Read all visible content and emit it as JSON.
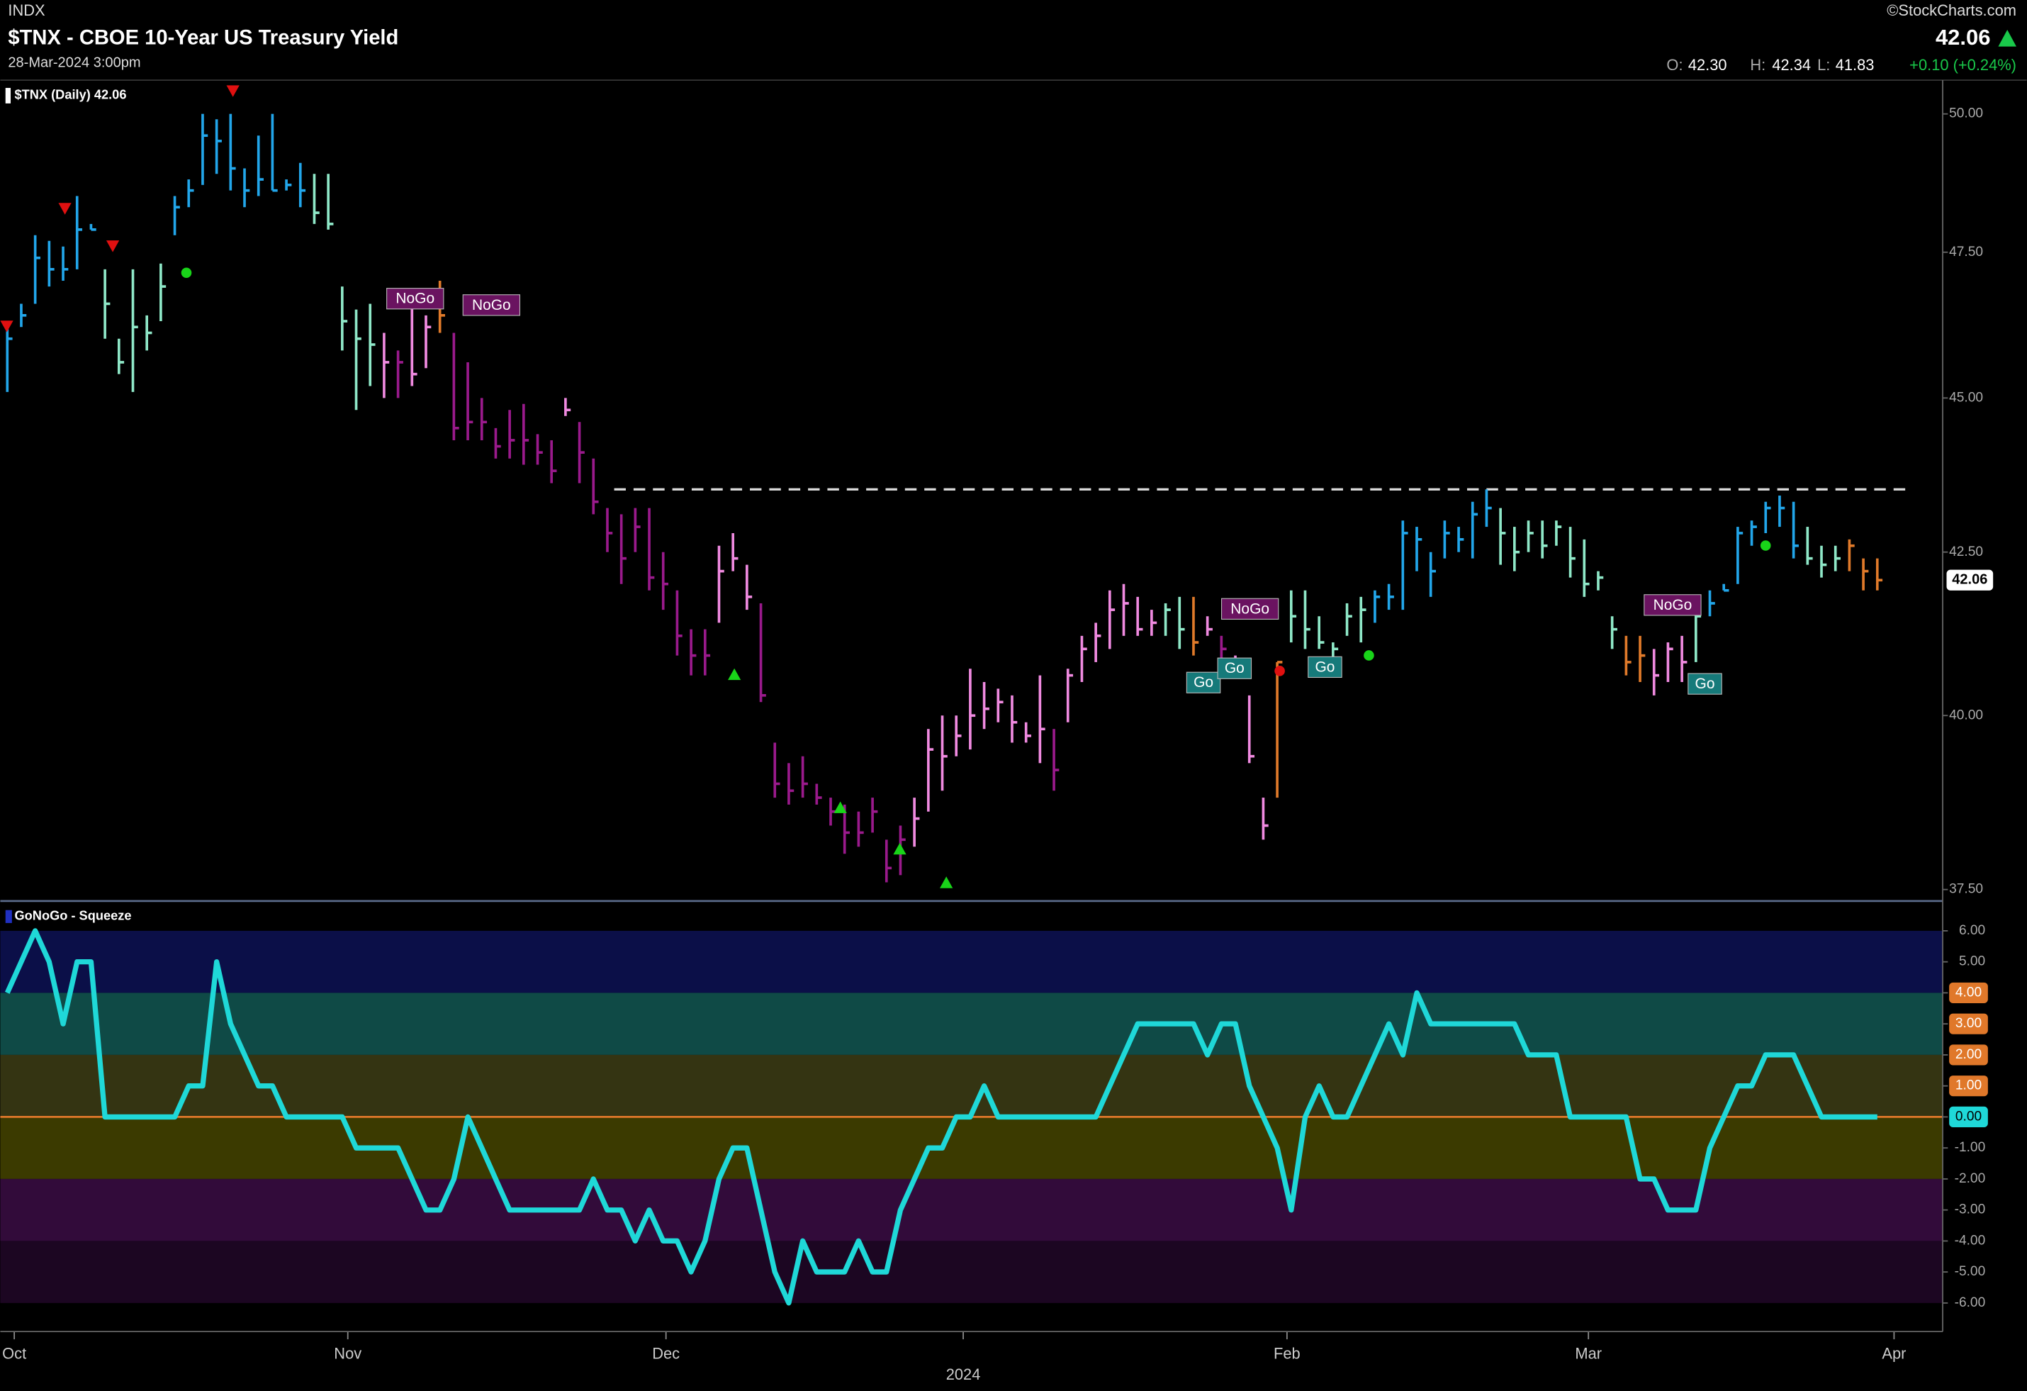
{
  "header": {
    "exchange": "INDX",
    "copyright": "©StockCharts.com",
    "title": "$TNX - CBOE 10-Year US Treasury Yield",
    "date": "28-Mar-2024 3:00pm",
    "last": "42.06",
    "o_label": "O:",
    "open": "42.30",
    "h_label": "H:",
    "high": "42.34",
    "l_label": "L:",
    "low": "41.83",
    "change": "+0.10 (+0.24%)"
  },
  "chart_data": [
    {
      "type": "ohlc",
      "legend": "$TNX (Daily) 42.06",
      "log_scale": true,
      "ylim": [
        37.34,
        50.63
      ],
      "yticks": [
        {
          "value": 37.5,
          "label": "37.50"
        },
        {
          "value": 40,
          "label": "40.00"
        },
        {
          "value": 42.5,
          "label": "42.50"
        },
        {
          "value": 45,
          "label": "45.00"
        },
        {
          "value": 47.5,
          "label": "47.50"
        },
        {
          "value": 50,
          "label": "50.00"
        }
      ],
      "last_value": 42.06,
      "last_label": "42.06",
      "resistance_level": 43.5,
      "xlim": [
        -0.5,
        138.5
      ],
      "annotations": [
        "NoGo",
        "NoGo",
        "NoGo",
        "Go",
        "Go",
        "Go",
        "NoGo",
        "Go"
      ],
      "high": [
        46.2,
        46.6,
        47.8,
        47.7,
        47.6,
        48.5,
        48.0,
        47.2,
        46.0,
        47.2,
        46.4,
        47.3,
        48.5,
        48.8,
        50.0,
        49.9,
        50.0,
        49.0,
        49.6,
        50.0,
        48.8,
        49.1,
        48.9,
        48.9,
        46.9,
        46.5,
        46.6,
        46.1,
        45.8,
        46.6,
        46.4,
        47.0,
        46.1,
        45.6,
        45.0,
        44.5,
        44.8,
        44.9,
        44.4,
        44.3,
        45.0,
        44.6,
        44.0,
        43.2,
        43.1,
        43.2,
        43.2,
        42.5,
        41.9,
        41.3,
        41.3,
        42.6,
        42.8,
        42.3,
        41.7,
        39.6,
        39.3,
        39.4,
        39.0,
        38.8,
        38.7,
        38.6,
        38.8,
        38.2,
        38.4,
        38.8,
        39.8,
        40.0,
        40.0,
        40.7,
        40.5,
        40.4,
        40.3,
        39.9,
        40.6,
        39.8,
        40.7,
        41.2,
        41.4,
        41.9,
        42.0,
        41.8,
        41.6,
        41.7,
        41.8,
        41.8,
        41.5,
        41.2,
        40.9,
        40.3,
        38.8,
        40.8,
        41.9,
        41.9,
        41.5,
        41.1,
        41.7,
        41.8,
        41.9,
        42.0,
        43.0,
        42.9,
        42.5,
        43.0,
        42.9,
        43.3,
        43.5,
        43.2,
        42.9,
        43.0,
        43.0,
        43.0,
        42.9,
        42.7,
        42.2,
        41.5,
        41.2,
        41.2,
        41.0,
        41.1,
        41.2,
        41.6,
        41.9,
        42.0,
        42.9,
        43.0,
        43.3,
        43.4,
        43.3,
        42.9,
        42.6,
        42.6,
        42.7,
        42.4,
        42.4
      ],
      "low": [
        45.1,
        46.2,
        46.6,
        46.9,
        47.0,
        47.2,
        47.9,
        46.0,
        45.4,
        45.1,
        45.8,
        46.3,
        47.8,
        48.3,
        48.7,
        48.9,
        48.6,
        48.3,
        48.5,
        48.6,
        48.6,
        48.3,
        48.0,
        47.9,
        45.8,
        44.8,
        45.2,
        45.0,
        45.0,
        45.2,
        45.5,
        46.1,
        44.3,
        44.3,
        44.3,
        44.0,
        44.0,
        43.9,
        43.9,
        43.6,
        44.7,
        43.6,
        43.1,
        42.5,
        42.0,
        42.5,
        41.9,
        41.6,
        40.9,
        40.6,
        40.6,
        41.4,
        42.2,
        41.6,
        40.2,
        38.8,
        38.7,
        38.8,
        38.7,
        38.4,
        38.0,
        38.1,
        38.3,
        37.6,
        37.7,
        38.1,
        38.6,
        38.9,
        39.4,
        39.5,
        39.8,
        39.9,
        39.6,
        39.6,
        39.3,
        38.9,
        39.9,
        40.5,
        40.8,
        41.0,
        41.2,
        41.2,
        41.2,
        41.2,
        41.0,
        40.9,
        41.2,
        40.8,
        40.6,
        39.3,
        38.2,
        38.8,
        41.1,
        41.0,
        41.0,
        40.8,
        41.2,
        41.1,
        41.4,
        41.6,
        41.6,
        42.2,
        41.8,
        42.4,
        42.5,
        42.4,
        42.9,
        42.3,
        42.2,
        42.5,
        42.4,
        42.6,
        42.1,
        41.8,
        41.9,
        41.0,
        40.6,
        40.5,
        40.3,
        40.5,
        40.5,
        40.8,
        41.5,
        41.9,
        42.0,
        42.6,
        42.8,
        42.9,
        42.4,
        42.3,
        42.1,
        42.2,
        42.2,
        41.9,
        41.9
      ],
      "close": [
        46.0,
        46.4,
        47.4,
        47.2,
        47.2,
        47.9,
        47.9,
        46.6,
        45.6,
        46.2,
        46.1,
        46.9,
        48.3,
        48.6,
        49.6,
        49.5,
        49.0,
        48.6,
        48.8,
        48.6,
        48.7,
        48.6,
        48.2,
        48.0,
        46.3,
        46.0,
        45.9,
        45.6,
        45.6,
        45.4,
        46.2,
        46.4,
        44.5,
        44.6,
        44.6,
        44.2,
        44.3,
        44.3,
        44.1,
        43.8,
        44.8,
        44.1,
        43.3,
        42.8,
        42.4,
        42.9,
        42.1,
        42.0,
        41.2,
        40.9,
        40.9,
        42.2,
        42.4,
        41.8,
        40.3,
        39.0,
        38.9,
        39.0,
        38.8,
        38.6,
        38.3,
        38.3,
        38.6,
        37.8,
        38.2,
        38.5,
        39.5,
        39.4,
        39.7,
        40.0,
        40.1,
        40.2,
        39.9,
        39.7,
        39.8,
        39.2,
        40.6,
        41.0,
        41.2,
        41.6,
        41.7,
        41.3,
        41.4,
        41.6,
        41.3,
        41.1,
        41.3,
        41.0,
        40.7,
        39.4,
        38.4,
        40.8,
        41.5,
        41.3,
        41.1,
        41.0,
        41.5,
        41.6,
        41.8,
        41.8,
        42.8,
        42.7,
        42.2,
        42.8,
        42.7,
        43.1,
        43.2,
        42.8,
        42.5,
        42.8,
        42.6,
        42.9,
        42.4,
        42.0,
        42.1,
        41.3,
        40.8,
        40.9,
        40.6,
        41.0,
        40.8,
        41.5,
        41.7,
        41.9,
        42.8,
        42.9,
        43.2,
        43.2,
        42.6,
        42.4,
        42.3,
        42.4,
        42.6,
        42.2,
        42.06
      ],
      "colors": [
        "#22a6ea",
        "#22a6ea",
        "#22a6ea",
        "#22a6ea",
        "#22a6ea",
        "#22a6ea",
        "#22a6ea",
        "#8fe8c8",
        "#8fe8c8",
        "#8fe8c8",
        "#8fe8c8",
        "#8fe8c8",
        "#22a6ea",
        "#22a6ea",
        "#22a6ea",
        "#22a6ea",
        "#22a6ea",
        "#22a6ea",
        "#22a6ea",
        "#22a6ea",
        "#22a6ea",
        "#22a6ea",
        "#8fe8c8",
        "#8fe8c8",
        "#8fe8c8",
        "#8fe8c8",
        "#8fe8c8",
        "#f08ae0",
        "#9a1a8c",
        "#f08ae0",
        "#f08ae0",
        "#e07a2a",
        "#9a1a8c",
        "#9a1a8c",
        "#9a1a8c",
        "#9a1a8c",
        "#9a1a8c",
        "#9a1a8c",
        "#9a1a8c",
        "#9a1a8c",
        "#f08ae0",
        "#9a1a8c",
        "#9a1a8c",
        "#9a1a8c",
        "#9a1a8c",
        "#9a1a8c",
        "#9a1a8c",
        "#9a1a8c",
        "#9a1a8c",
        "#9a1a8c",
        "#9a1a8c",
        "#f08ae0",
        "#f08ae0",
        "#f08ae0",
        "#9a1a8c",
        "#9a1a8c",
        "#9a1a8c",
        "#9a1a8c",
        "#9a1a8c",
        "#9a1a8c",
        "#9a1a8c",
        "#9a1a8c",
        "#9a1a8c",
        "#9a1a8c",
        "#9a1a8c",
        "#f08ae0",
        "#f08ae0",
        "#f08ae0",
        "#f08ae0",
        "#f08ae0",
        "#f08ae0",
        "#f08ae0",
        "#f08ae0",
        "#f08ae0",
        "#f08ae0",
        "#9a1a8c",
        "#f08ae0",
        "#f08ae0",
        "#f08ae0",
        "#f08ae0",
        "#f08ae0",
        "#f08ae0",
        "#f08ae0",
        "#8fe8c8",
        "#8fe8c8",
        "#e07a2a",
        "#f08ae0",
        "#9a1a8c",
        "#f08ae0",
        "#f08ae0",
        "#f08ae0",
        "#e07a2a",
        "#8fe8c8",
        "#8fe8c8",
        "#8fe8c8",
        "#8fe8c8",
        "#8fe8c8",
        "#8fe8c8",
        "#22a6ea",
        "#22a6ea",
        "#22a6ea",
        "#22a6ea",
        "#22a6ea",
        "#22a6ea",
        "#22a6ea",
        "#22a6ea",
        "#22a6ea",
        "#8fe8c8",
        "#8fe8c8",
        "#8fe8c8",
        "#8fe8c8",
        "#8fe8c8",
        "#8fe8c8",
        "#8fe8c8",
        "#8fe8c8",
        "#8fe8c8",
        "#e07a2a",
        "#e07a2a",
        "#f08ae0",
        "#f08ae0",
        "#f08ae0",
        "#8fe8c8",
        "#22a6ea",
        "#22a6ea",
        "#22a6ea",
        "#22a6ea",
        "#22a6ea",
        "#22a6ea",
        "#22a6ea",
        "#8fe8c8",
        "#8fe8c8",
        "#8fe8c8",
        "#e07a2a",
        "#e07a2a",
        "#e07a2a"
      ],
      "xticks": [
        {
          "value": 0.5,
          "label": "Oct"
        },
        {
          "value": 24.4,
          "label": "Nov"
        },
        {
          "value": 47.2,
          "label": "Dec"
        },
        {
          "value": 68.5,
          "label": "2024"
        },
        {
          "value": 91.7,
          "label": "Feb"
        },
        {
          "value": 113.3,
          "label": "Mar"
        },
        {
          "value": 135.2,
          "label": "Apr"
        }
      ]
    },
    {
      "type": "line",
      "legend": "GoNoGo - Squeeze",
      "color": "#1fd8d8",
      "zero_color": "#e0782a",
      "ylim": [
        -6.92,
        6.96
      ],
      "xlim": [
        -0.5,
        138.5
      ],
      "yticks": [
        {
          "value": 6,
          "label": "6.00"
        },
        {
          "value": 5,
          "label": "5.00"
        },
        {
          "value": 4,
          "label": "4.00"
        },
        {
          "value": 3,
          "label": "3.00"
        },
        {
          "value": 2,
          "label": "2.00"
        },
        {
          "value": 1,
          "label": "1.00"
        },
        {
          "value": 0,
          "label": "0.00"
        },
        {
          "value": -1,
          "label": "-1.00"
        },
        {
          "value": -2,
          "label": "-2.00"
        },
        {
          "value": -3,
          "label": "-3.00"
        },
        {
          "value": -4,
          "label": "-4.00"
        },
        {
          "value": -5,
          "label": "-5.00"
        },
        {
          "value": -6,
          "label": "-6.00"
        }
      ],
      "squeeze_ticks": [
        {
          "value": 4,
          "label": "4.00"
        },
        {
          "value": 3,
          "label": "3.00"
        },
        {
          "value": 2,
          "label": "2.00"
        },
        {
          "value": 1,
          "label": "1.00"
        }
      ],
      "current": {
        "value": 0,
        "label": "0.00"
      },
      "zones": [
        {
          "from": 4,
          "to": 6,
          "color": "#0b0f48"
        },
        {
          "from": 2,
          "to": 4,
          "color": "#0f4a46"
        },
        {
          "from": 0,
          "to": 2,
          "color": "#343412"
        },
        {
          "from": -2,
          "to": 0,
          "color": "#3b3a00"
        },
        {
          "from": -4,
          "to": -2,
          "color": "#320b3a"
        },
        {
          "from": -6,
          "to": -4,
          "color": "#1c0622"
        }
      ],
      "values": [
        4,
        5,
        6,
        5,
        3,
        5,
        5,
        0,
        0,
        0,
        0,
        0,
        0,
        1,
        1,
        5,
        3,
        2,
        1,
        1,
        0,
        0,
        0,
        0,
        0,
        -1,
        -1,
        -1,
        -1,
        -2,
        -3,
        -3,
        -2,
        0,
        -1,
        -2,
        -3,
        -3,
        -3,
        -3,
        -3,
        -3,
        -2,
        -3,
        -3,
        -4,
        -3,
        -4,
        -4,
        -5,
        -4,
        -2,
        -1,
        -1,
        -3,
        -5,
        -6,
        -4,
        -5,
        -5,
        -5,
        -4,
        -5,
        -5,
        -3,
        -2,
        -1,
        -1,
        0,
        0,
        1,
        0,
        0,
        0,
        0,
        0,
        0,
        0,
        0,
        1,
        2,
        3,
        3,
        3,
        3,
        3,
        2,
        3,
        3,
        1,
        0,
        -1,
        -3,
        0,
        1,
        0,
        0,
        1,
        2,
        3,
        2,
        4,
        3,
        3,
        3,
        3,
        3,
        3,
        3,
        2,
        2,
        2,
        0,
        0,
        0,
        0,
        0,
        -2,
        -2,
        -3,
        -3,
        -3,
        -1,
        0,
        1,
        1,
        2,
        2,
        2,
        1,
        0,
        0,
        0,
        0,
        0
      ]
    }
  ]
}
